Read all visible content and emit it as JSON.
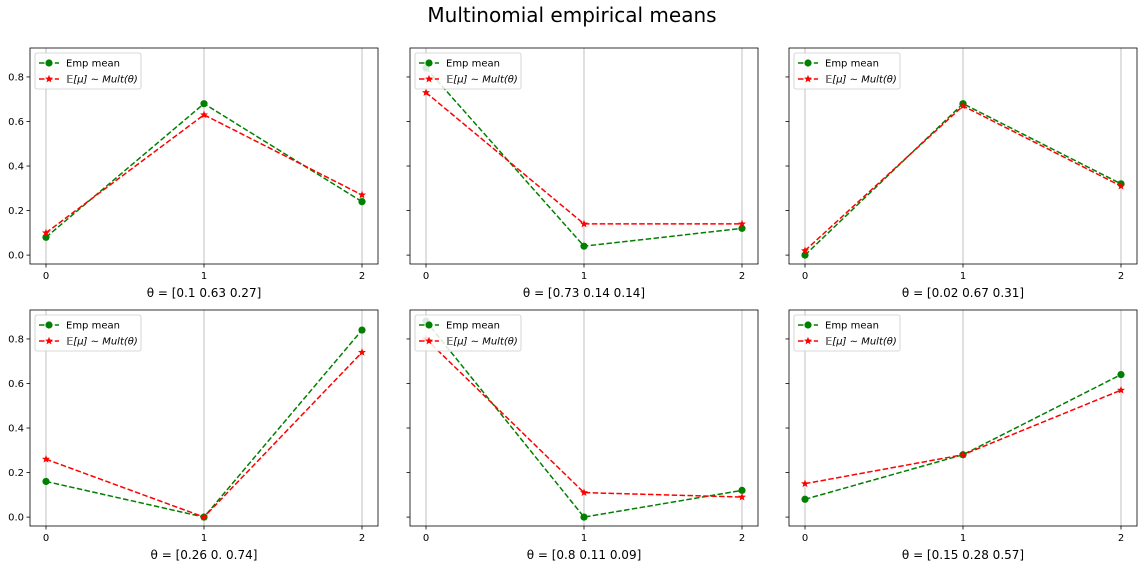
{
  "figure": {
    "title": "Multinomial empirical means",
    "background": "#ffffff"
  },
  "legend": {
    "placement": "upper-left",
    "entries": [
      "Emp mean",
      "𝔼[μ] ∼ Mult(θ)"
    ]
  },
  "colors": {
    "emp_mean": "#008000",
    "expected": "#ff0000",
    "grid": "#b0b0b0",
    "axis": "#000000"
  },
  "chart_data": [
    {
      "type": "line",
      "xlabel": "θ = [0.1  0.63 0.27]",
      "x": [
        0,
        1,
        2
      ],
      "xticks": [
        "0",
        "1",
        "2"
      ],
      "yticks": [
        "0.0",
        "0.2",
        "0.4",
        "0.6",
        "0.8"
      ],
      "ylim": [
        -0.04,
        0.93
      ],
      "grid": "x",
      "series": [
        {
          "name": "Emp mean",
          "marker": "circle",
          "style": "dashed",
          "values": [
            0.08,
            0.68,
            0.24
          ]
        },
        {
          "name": "𝔼[μ] ∼ Mult(θ)",
          "marker": "star",
          "style": "dashed",
          "values": [
            0.1,
            0.63,
            0.27
          ]
        }
      ]
    },
    {
      "type": "line",
      "xlabel": "θ = [0.73 0.14 0.14]",
      "x": [
        0,
        1,
        2
      ],
      "xticks": [
        "0",
        "1",
        "2"
      ],
      "yticks": [],
      "ylim": [
        -0.04,
        0.93
      ],
      "grid": "x",
      "series": [
        {
          "name": "Emp mean",
          "marker": "circle",
          "style": "dashed",
          "values": [
            0.84,
            0.04,
            0.12
          ]
        },
        {
          "name": "𝔼[μ] ∼ Mult(θ)",
          "marker": "star",
          "style": "dashed",
          "values": [
            0.73,
            0.14,
            0.14
          ]
        }
      ]
    },
    {
      "type": "line",
      "xlabel": "θ = [0.02 0.67 0.31]",
      "x": [
        0,
        1,
        2
      ],
      "xticks": [
        "0",
        "1",
        "2"
      ],
      "yticks": [],
      "ylim": [
        -0.04,
        0.93
      ],
      "grid": "x",
      "series": [
        {
          "name": "Emp mean",
          "marker": "circle",
          "style": "dashed",
          "values": [
            0.0,
            0.68,
            0.32
          ]
        },
        {
          "name": "𝔼[μ] ∼ Mult(θ)",
          "marker": "star",
          "style": "dashed",
          "values": [
            0.02,
            0.67,
            0.31
          ]
        }
      ]
    },
    {
      "type": "line",
      "xlabel": "θ = [0.26 0.   0.74]",
      "x": [
        0,
        1,
        2
      ],
      "xticks": [
        "0",
        "1",
        "2"
      ],
      "yticks": [
        "0.0",
        "0.2",
        "0.4",
        "0.6",
        "0.8"
      ],
      "ylim": [
        -0.04,
        0.93
      ],
      "grid": "x",
      "series": [
        {
          "name": "Emp mean",
          "marker": "circle",
          "style": "dashed",
          "values": [
            0.16,
            0.0,
            0.84
          ]
        },
        {
          "name": "𝔼[μ] ∼ Mult(θ)",
          "marker": "star",
          "style": "dashed",
          "values": [
            0.26,
            0.0,
            0.74
          ]
        }
      ]
    },
    {
      "type": "line",
      "xlabel": "θ = [0.8  0.11 0.09]",
      "x": [
        0,
        1,
        2
      ],
      "xticks": [
        "0",
        "1",
        "2"
      ],
      "yticks": [],
      "ylim": [
        -0.04,
        0.93
      ],
      "grid": "x",
      "series": [
        {
          "name": "Emp mean",
          "marker": "circle",
          "style": "dashed",
          "values": [
            0.88,
            0.0,
            0.12
          ]
        },
        {
          "name": "𝔼[μ] ∼ Mult(θ)",
          "marker": "star",
          "style": "dashed",
          "values": [
            0.8,
            0.11,
            0.09
          ]
        }
      ]
    },
    {
      "type": "line",
      "xlabel": "θ = [0.15 0.28 0.57]",
      "x": [
        0,
        1,
        2
      ],
      "xticks": [
        "0",
        "1",
        "2"
      ],
      "yticks": [],
      "ylim": [
        -0.04,
        0.93
      ],
      "grid": "x",
      "series": [
        {
          "name": "Emp mean",
          "marker": "circle",
          "style": "dashed",
          "values": [
            0.08,
            0.28,
            0.64
          ]
        },
        {
          "name": "𝔼[μ] ∼ Mult(θ)",
          "marker": "star",
          "style": "dashed",
          "values": [
            0.15,
            0.28,
            0.57
          ]
        }
      ]
    }
  ]
}
